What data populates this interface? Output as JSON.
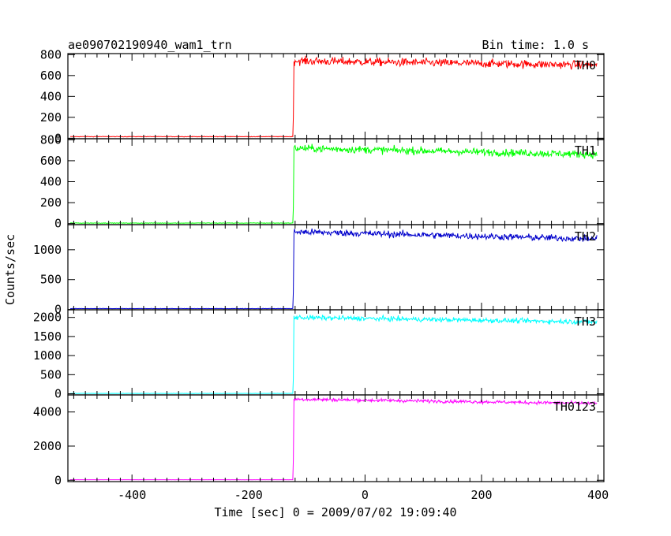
{
  "chart_data": {
    "type": "line",
    "title_left": "ae090702190940_wam1_trn",
    "title_right": "Bin time: 1.0 s",
    "xlabel": "Time [sec] 0 = 2009/07/02 19:09:40",
    "ylabel": "Counts/sec",
    "xlim": [
      -510,
      410
    ],
    "x_ticks": [
      -400,
      -200,
      0,
      200,
      400
    ],
    "onset_time": -123,
    "panels": [
      {
        "name": "TH0",
        "color": "#ff0000",
        "ylim": [
          -5,
          810
        ],
        "y_ticks": [
          0,
          200,
          400,
          600,
          800
        ],
        "pre_level": 15,
        "peak_level": 740,
        "end_level": 700,
        "noise": 28,
        "spike": 200
      },
      {
        "name": "TH1",
        "color": "#00ff00",
        "ylim": [
          -10,
          810
        ],
        "y_ticks": [
          0,
          200,
          400,
          600,
          800
        ],
        "pre_level": 5,
        "peak_level": 720,
        "end_level": 660,
        "noise": 25,
        "spike": 150
      },
      {
        "name": "TH2",
        "color": "#0000cc",
        "ylim": [
          -5,
          1420
        ],
        "y_ticks": [
          0,
          500,
          1000
        ],
        "pre_level": 15,
        "peak_level": 1300,
        "end_level": 1180,
        "noise": 40,
        "spike": 300
      },
      {
        "name": "TH3",
        "color": "#00ffff",
        "ylim": [
          -30,
          2200
        ],
        "y_ticks": [
          0,
          500,
          1000,
          1500,
          2000
        ],
        "pre_level": 10,
        "peak_level": 2000,
        "end_level": 1880,
        "noise": 45,
        "spike": 400
      },
      {
        "name": "TH0123",
        "color": "#ff00ff",
        "ylim": [
          -80,
          5000
        ],
        "y_ticks": [
          0,
          2000,
          4000
        ],
        "pre_level": 30,
        "peak_level": 4750,
        "end_level": 4500,
        "noise": 70,
        "spike": 1200
      }
    ]
  }
}
